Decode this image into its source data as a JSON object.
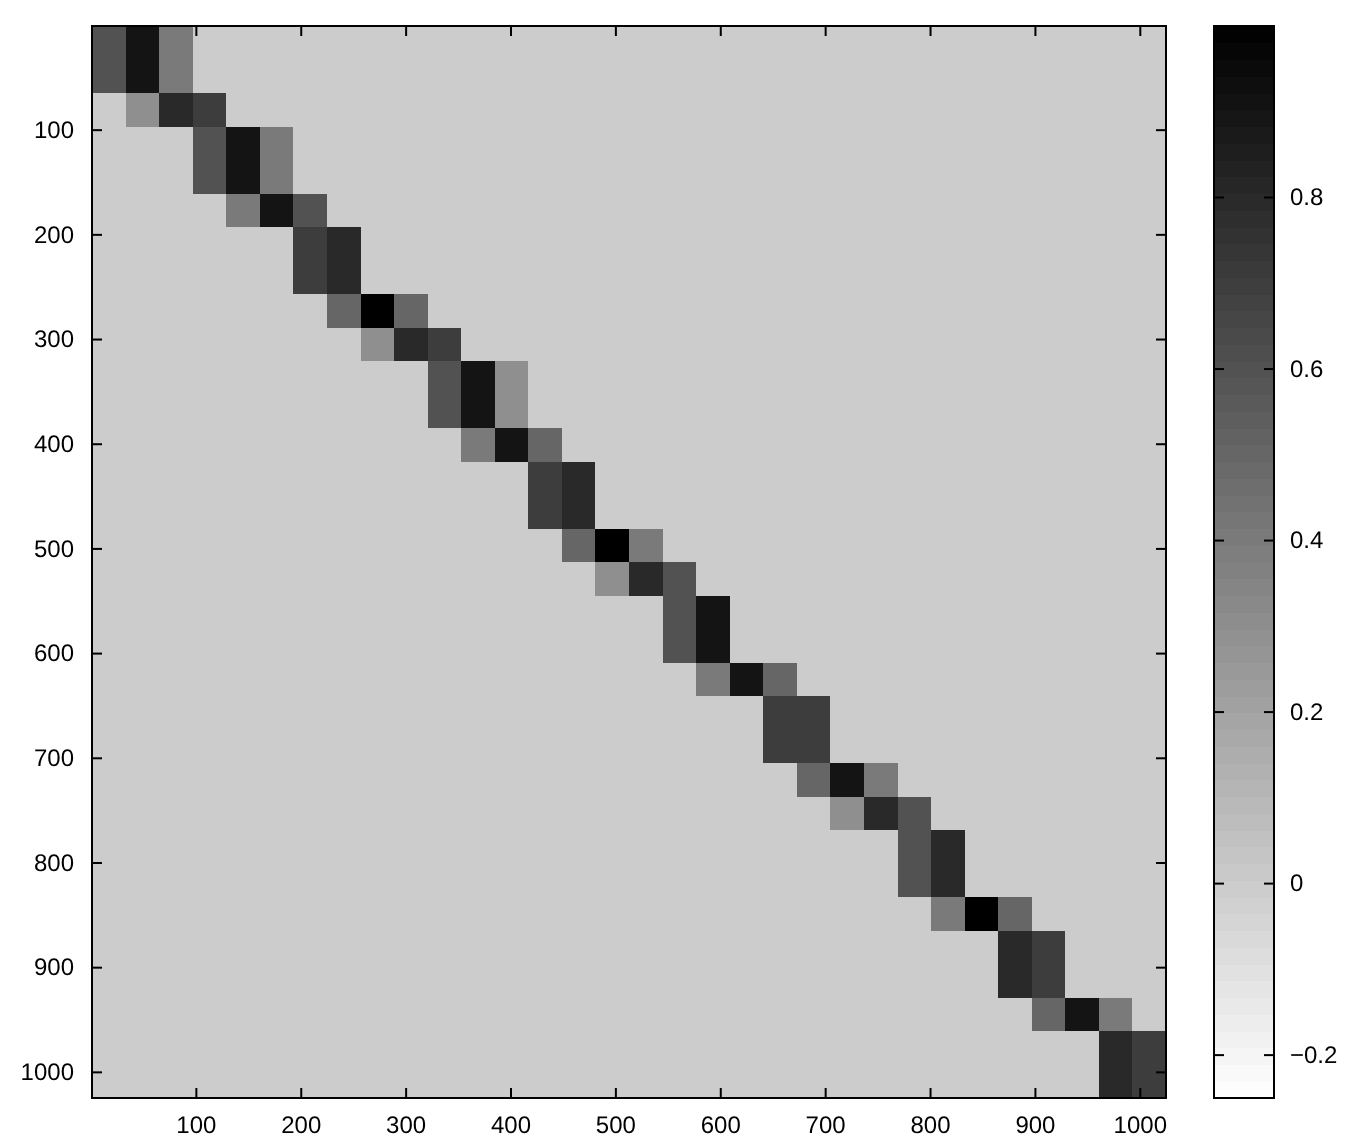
{
  "chart_data": {
    "type": "heatmap",
    "xlim": [
      0.5,
      1024.5
    ],
    "ylim": [
      1024.5,
      0.5
    ],
    "xticks": [
      100,
      200,
      300,
      400,
      500,
      600,
      700,
      800,
      900,
      1000
    ],
    "yticks": [
      100,
      200,
      300,
      400,
      500,
      600,
      700,
      800,
      900,
      1000
    ],
    "clim": [
      -0.25,
      1
    ],
    "cticks": [
      -0.2,
      0,
      0.2,
      0.4,
      0.6,
      0.8
    ],
    "cells": [
      [
        0.6,
        0.9,
        0.4,
        0,
        0,
        0,
        0,
        0,
        0,
        0,
        0,
        0,
        0,
        0,
        0,
        0,
        0,
        0,
        0,
        0,
        0,
        0,
        0,
        0,
        0,
        0,
        0,
        0,
        0,
        0,
        0,
        0
      ],
      [
        0.6,
        0.9,
        0.4,
        0,
        0,
        0,
        0,
        0,
        0,
        0,
        0,
        0,
        0,
        0,
        0,
        0,
        0,
        0,
        0,
        0,
        0,
        0,
        0,
        0,
        0,
        0,
        0,
        0,
        0,
        0,
        0,
        0
      ],
      [
        0,
        0.3,
        0.8,
        0.7,
        0,
        0,
        0,
        0,
        0,
        0,
        0,
        0,
        0,
        0,
        0,
        0,
        0,
        0,
        0,
        0,
        0,
        0,
        0,
        0,
        0,
        0,
        0,
        0,
        0,
        0,
        0,
        0
      ],
      [
        0,
        0,
        0,
        0.6,
        0.9,
        0.4,
        0,
        0,
        0,
        0,
        0,
        0,
        0,
        0,
        0,
        0,
        0,
        0,
        0,
        0,
        0,
        0,
        0,
        0,
        0,
        0,
        0,
        0,
        0,
        0,
        0,
        0
      ],
      [
        0,
        0,
        0,
        0.6,
        0.9,
        0.4,
        0,
        0,
        0,
        0,
        0,
        0,
        0,
        0,
        0,
        0,
        0,
        0,
        0,
        0,
        0,
        0,
        0,
        0,
        0,
        0,
        0,
        0,
        0,
        0,
        0,
        0
      ],
      [
        0,
        0,
        0,
        0,
        0.4,
        0.9,
        0.6,
        0,
        0,
        0,
        0,
        0,
        0,
        0,
        0,
        0,
        0,
        0,
        0,
        0,
        0,
        0,
        0,
        0,
        0,
        0,
        0,
        0,
        0,
        0,
        0,
        0
      ],
      [
        0,
        0,
        0,
        0,
        0,
        0,
        0.7,
        0.8,
        0,
        0,
        0,
        0,
        0,
        0,
        0,
        0,
        0,
        0,
        0,
        0,
        0,
        0,
        0,
        0,
        0,
        0,
        0,
        0,
        0,
        0,
        0,
        0
      ],
      [
        0,
        0,
        0,
        0,
        0,
        0,
        0.7,
        0.8,
        0,
        0,
        0,
        0,
        0,
        0,
        0,
        0,
        0,
        0,
        0,
        0,
        0,
        0,
        0,
        0,
        0,
        0,
        0,
        0,
        0,
        0,
        0,
        0
      ],
      [
        0,
        0,
        0,
        0,
        0,
        0,
        0,
        0.5,
        1,
        0.5,
        0,
        0,
        0,
        0,
        0,
        0,
        0,
        0,
        0,
        0,
        0,
        0,
        0,
        0,
        0,
        0,
        0,
        0,
        0,
        0,
        0,
        0
      ],
      [
        0,
        0,
        0,
        0,
        0,
        0,
        0,
        0,
        0.3,
        0.8,
        0.7,
        0,
        0,
        0,
        0,
        0,
        0,
        0,
        0,
        0,
        0,
        0,
        0,
        0,
        0,
        0,
        0,
        0,
        0,
        0,
        0,
        0
      ],
      [
        0,
        0,
        0,
        0,
        0,
        0,
        0,
        0,
        0,
        0,
        0.6,
        0.9,
        0.3,
        0,
        0,
        0,
        0,
        0,
        0,
        0,
        0,
        0,
        0,
        0,
        0,
        0,
        0,
        0,
        0,
        0,
        0,
        0
      ],
      [
        0,
        0,
        0,
        0,
        0,
        0,
        0,
        0,
        0,
        0,
        0.6,
        0.9,
        0.3,
        0,
        0,
        0,
        0,
        0,
        0,
        0,
        0,
        0,
        0,
        0,
        0,
        0,
        0,
        0,
        0,
        0,
        0,
        0
      ],
      [
        0,
        0,
        0,
        0,
        0,
        0,
        0,
        0,
        0,
        0,
        0,
        0.4,
        0.9,
        0.5,
        0,
        0,
        0,
        0,
        0,
        0,
        0,
        0,
        0,
        0,
        0,
        0,
        0,
        0,
        0,
        0,
        0,
        0
      ],
      [
        0,
        0,
        0,
        0,
        0,
        0,
        0,
        0,
        0,
        0,
        0,
        0,
        0,
        0.7,
        0.8,
        0,
        0,
        0,
        0,
        0,
        0,
        0,
        0,
        0,
        0,
        0,
        0,
        0,
        0,
        0,
        0,
        0
      ],
      [
        0,
        0,
        0,
        0,
        0,
        0,
        0,
        0,
        0,
        0,
        0,
        0,
        0,
        0.7,
        0.8,
        0,
        0,
        0,
        0,
        0,
        0,
        0,
        0,
        0,
        0,
        0,
        0,
        0,
        0,
        0,
        0,
        0
      ],
      [
        0,
        0,
        0,
        0,
        0,
        0,
        0,
        0,
        0,
        0,
        0,
        0,
        0,
        0,
        0.5,
        1,
        0.4,
        0,
        0,
        0,
        0,
        0,
        0,
        0,
        0,
        0,
        0,
        0,
        0,
        0,
        0,
        0
      ],
      [
        0,
        0,
        0,
        0,
        0,
        0,
        0,
        0,
        0,
        0,
        0,
        0,
        0,
        0,
        0,
        0.3,
        0.8,
        0.6,
        0,
        0,
        0,
        0,
        0,
        0,
        0,
        0,
        0,
        0,
        0,
        0,
        0,
        0
      ],
      [
        0,
        0,
        0,
        0,
        0,
        0,
        0,
        0,
        0,
        0,
        0,
        0,
        0,
        0,
        0,
        0,
        0,
        0.6,
        0.9,
        0,
        0,
        0,
        0,
        0,
        0,
        0,
        0,
        0,
        0,
        0,
        0,
        0
      ],
      [
        0,
        0,
        0,
        0,
        0,
        0,
        0,
        0,
        0,
        0,
        0,
        0,
        0,
        0,
        0,
        0,
        0,
        0.6,
        0.9,
        0,
        0,
        0,
        0,
        0,
        0,
        0,
        0,
        0,
        0,
        0,
        0,
        0
      ],
      [
        0,
        0,
        0,
        0,
        0,
        0,
        0,
        0,
        0,
        0,
        0,
        0,
        0,
        0,
        0,
        0,
        0,
        0,
        0.4,
        0.9,
        0.5,
        0,
        0,
        0,
        0,
        0,
        0,
        0,
        0,
        0,
        0,
        0
      ],
      [
        0,
        0,
        0,
        0,
        0,
        0,
        0,
        0,
        0,
        0,
        0,
        0,
        0,
        0,
        0,
        0,
        0,
        0,
        0,
        0,
        0.7,
        0.7,
        0,
        0,
        0,
        0,
        0,
        0,
        0,
        0,
        0,
        0
      ],
      [
        0,
        0,
        0,
        0,
        0,
        0,
        0,
        0,
        0,
        0,
        0,
        0,
        0,
        0,
        0,
        0,
        0,
        0,
        0,
        0,
        0.7,
        0.7,
        0,
        0,
        0,
        0,
        0,
        0,
        0,
        0,
        0,
        0
      ],
      [
        0,
        0,
        0,
        0,
        0,
        0,
        0,
        0,
        0,
        0,
        0,
        0,
        0,
        0,
        0,
        0,
        0,
        0,
        0,
        0,
        0,
        0.5,
        0.9,
        0.4,
        0,
        0,
        0,
        0,
        0,
        0,
        0,
        0
      ],
      [
        0,
        0,
        0,
        0,
        0,
        0,
        0,
        0,
        0,
        0,
        0,
        0,
        0,
        0,
        0,
        0,
        0,
        0,
        0,
        0,
        0,
        0,
        0.3,
        0.8,
        0.6,
        0,
        0,
        0,
        0,
        0,
        0,
        0
      ],
      [
        0,
        0,
        0,
        0,
        0,
        0,
        0,
        0,
        0,
        0,
        0,
        0,
        0,
        0,
        0,
        0,
        0,
        0,
        0,
        0,
        0,
        0,
        0,
        0,
        0.6,
        0.8,
        0,
        0,
        0,
        0,
        0,
        0
      ],
      [
        0,
        0,
        0,
        0,
        0,
        0,
        0,
        0,
        0,
        0,
        0,
        0,
        0,
        0,
        0,
        0,
        0,
        0,
        0,
        0,
        0,
        0,
        0,
        0,
        0.6,
        0.8,
        0,
        0,
        0,
        0,
        0,
        0
      ],
      [
        0,
        0,
        0,
        0,
        0,
        0,
        0,
        0,
        0,
        0,
        0,
        0,
        0,
        0,
        0,
        0,
        0,
        0,
        0,
        0,
        0,
        0,
        0,
        0,
        0,
        0.4,
        1,
        0.5,
        0,
        0,
        0,
        0
      ],
      [
        0,
        0,
        0,
        0,
        0,
        0,
        0,
        0,
        0,
        0,
        0,
        0,
        0,
        0,
        0,
        0,
        0,
        0,
        0,
        0,
        0,
        0,
        0,
        0,
        0,
        0,
        0,
        0.8,
        0.7,
        0,
        0,
        0
      ],
      [
        0,
        0,
        0,
        0,
        0,
        0,
        0,
        0,
        0,
        0,
        0,
        0,
        0,
        0,
        0,
        0,
        0,
        0,
        0,
        0,
        0,
        0,
        0,
        0,
        0,
        0,
        0,
        0.8,
        0.7,
        0,
        0,
        0
      ],
      [
        0,
        0,
        0,
        0,
        0,
        0,
        0,
        0,
        0,
        0,
        0,
        0,
        0,
        0,
        0,
        0,
        0,
        0,
        0,
        0,
        0,
        0,
        0,
        0,
        0,
        0,
        0,
        0,
        0.5,
        0.9,
        0.4,
        0
      ],
      [
        0,
        0,
        0,
        0,
        0,
        0,
        0,
        0,
        0,
        0,
        0,
        0,
        0,
        0,
        0,
        0,
        0,
        0,
        0,
        0,
        0,
        0,
        0,
        0,
        0,
        0,
        0,
        0,
        0,
        0,
        0.8,
        0.7
      ],
      [
        0,
        0,
        0,
        0,
        0,
        0,
        0,
        0,
        0,
        0,
        0,
        0,
        0,
        0,
        0,
        0,
        0,
        0,
        0,
        0,
        0,
        0,
        0,
        0,
        0,
        0,
        0,
        0,
        0,
        0,
        0.8,
        0.7
      ]
    ]
  }
}
